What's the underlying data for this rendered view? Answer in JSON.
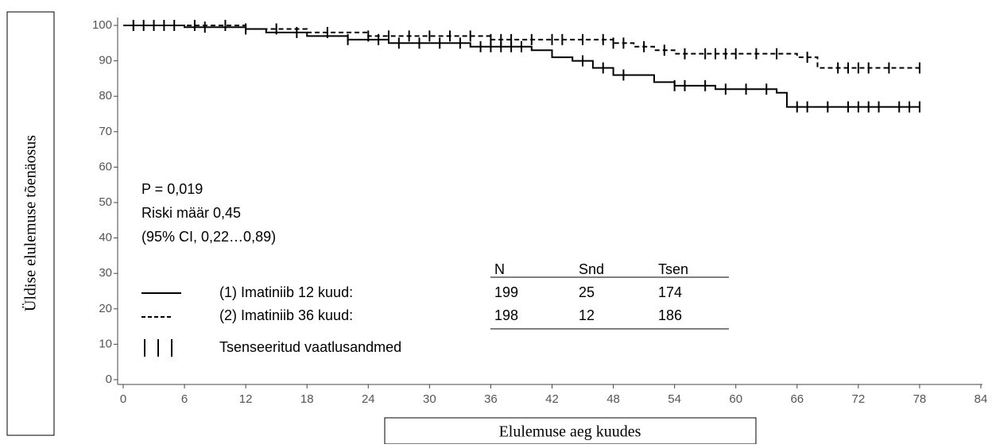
{
  "chart_data": {
    "type": "step",
    "y_label": "Üldise elulemuse tõenäosus",
    "x_label": "Elulemuse aeg kuudes",
    "xlim": [
      0,
      84
    ],
    "xticks": [
      0,
      6,
      12,
      18,
      24,
      30,
      36,
      42,
      48,
      54,
      60,
      66,
      72,
      78,
      84
    ],
    "ylim": [
      0,
      100
    ],
    "yticks": [
      0,
      10,
      20,
      30,
      40,
      50,
      60,
      70,
      80,
      90,
      100
    ],
    "series": [
      {
        "name": "(1) Imatiniib 12 kuud:",
        "color": "#000000",
        "dash": false,
        "x": [
          0,
          6,
          12,
          14,
          18,
          22,
          26,
          34,
          40,
          42,
          44,
          46,
          48,
          52,
          54,
          58,
          64,
          65,
          78
        ],
        "values": [
          100,
          99.5,
          99,
          98,
          97,
          96,
          95,
          94,
          93,
          91,
          90,
          88,
          86,
          84,
          83,
          82,
          81,
          77,
          77
        ],
        "censored": [
          1,
          2,
          3,
          5,
          8,
          12,
          17,
          22,
          25,
          27,
          29,
          31,
          33,
          35,
          36,
          37,
          38,
          39,
          45,
          47,
          49,
          54,
          55,
          57,
          59,
          61,
          63,
          66,
          67,
          69,
          71,
          72,
          73,
          74,
          76,
          77,
          78
        ]
      },
      {
        "name": "(2) Imatiniib 36 kuud:",
        "color": "#000000",
        "dash": true,
        "x": [
          0,
          12,
          18,
          24,
          36,
          48,
          50,
          52,
          54,
          66,
          68,
          78
        ],
        "values": [
          100,
          99,
          98,
          97,
          96,
          95,
          94,
          93,
          92,
          91,
          88,
          88
        ],
        "censored": [
          1,
          4,
          7,
          10,
          15,
          20,
          24,
          26,
          28,
          30,
          32,
          34,
          36,
          37,
          38,
          40,
          42,
          43,
          45,
          47,
          48,
          49,
          51,
          53,
          55,
          57,
          58,
          59,
          60,
          62,
          64,
          67,
          70,
          71,
          72,
          73,
          75,
          78
        ]
      }
    ],
    "annotations": [
      "P = 0,019",
      "Riski määr 0,45",
      "(95% CI, 0,22…0,89)"
    ],
    "table": {
      "columns": [
        "N",
        "Snd",
        "Tsen"
      ],
      "rows": [
        [
          199,
          25,
          174
        ],
        [
          198,
          12,
          186
        ]
      ]
    },
    "censored_label": "Tsenseeritud vaatlusandmed"
  }
}
